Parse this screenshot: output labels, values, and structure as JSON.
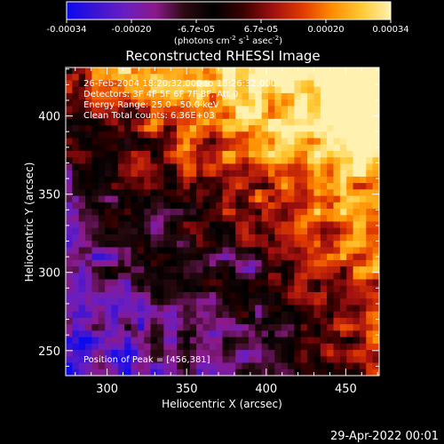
{
  "colorbar": {
    "ticks": [
      "-0.00034",
      "-0.00020",
      "-6.7e-05",
      "6.7e-05",
      "0.00020",
      "0.00034"
    ],
    "units_html": "(photons cm<tspan baseline-shift=\"super\" font-size=\"7\">-2</tspan> s<tspan baseline-shift=\"super\" font-size=\"7\">-1</tspan> asec<tspan baseline-shift=\"super\" font-size=\"7\">-2</tspan>)",
    "colors": [
      "#0a0af0",
      "#3c14d2",
      "#6a1ec0",
      "#8b1a8a",
      "#2a0a10",
      "#000000",
      "#3a0000",
      "#a01010",
      "#e03a00",
      "#ff8c00",
      "#ffc832",
      "#fff2b0"
    ]
  },
  "chart_data": {
    "type": "heatmap",
    "title": "Reconstructed RHESSI Image",
    "xlabel": "Heliocentric X (arcsec)",
    "ylabel": "Heliocentric Y (arcsec)",
    "xlim": [
      274,
      471
    ],
    "ylim": [
      234,
      431
    ],
    "xticks": [
      300,
      350,
      400,
      450
    ],
    "yticks": [
      250,
      300,
      350,
      400
    ],
    "value_range": [
      -0.00034,
      0.00034
    ],
    "peak": [
      456,
      381
    ]
  },
  "annotations": {
    "time": "26-Feb-2004 18:20:32.000 to 18:26:32.000",
    "detectors": "Detectors: 3F 4F 5F 6F 7F 8F, Att 0",
    "energy": "Energy Range: 25.0 - 50.0 keV",
    "clean": "Clean    Total counts: 6.36E+03",
    "peak": "Position of Peak = [456,381]"
  },
  "footer": {
    "date": "29-Apr-2022 00:01"
  }
}
